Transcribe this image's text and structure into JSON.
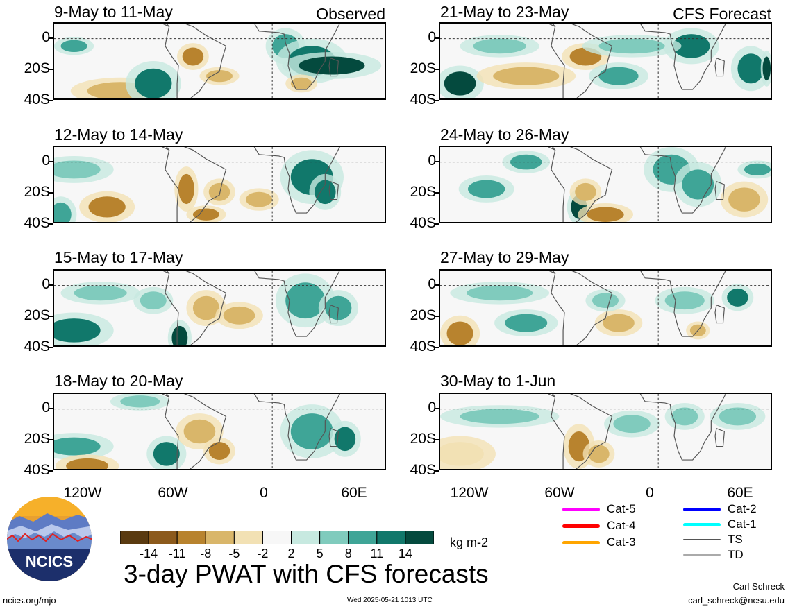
{
  "header": {
    "left_label": "Observed",
    "right_label": "CFS Forecast"
  },
  "panels": {
    "left": [
      "9-May to 11-May",
      "12-May to 14-May",
      "15-May to 17-May",
      "18-May to 20-May"
    ],
    "right": [
      "21-May to 23-May",
      "24-May to 26-May",
      "27-May to 29-May",
      "30-May to 1-Jun"
    ]
  },
  "axes": {
    "lat_ticks": [
      "0",
      "20S",
      "40S"
    ],
    "lon_ticks": [
      "120W",
      "60W",
      "0",
      "60E"
    ]
  },
  "colorbar": {
    "ticks": [
      "-14",
      "-11",
      "-8",
      "-5",
      "-2",
      "2",
      "5",
      "8",
      "11",
      "14"
    ],
    "units": "kg m-2",
    "colors": [
      "#5a3a10",
      "#8c5a1c",
      "#b8832e",
      "#d9b66a",
      "#f2e1b4",
      "#f7f7f7",
      "#c7e9e0",
      "#80cbbd",
      "#3fa597",
      "#11786b",
      "#044a3e"
    ]
  },
  "legend": {
    "col1": [
      {
        "label": "Cat-5",
        "color": "#ff00ff"
      },
      {
        "label": "Cat-4",
        "color": "#ff0000"
      },
      {
        "label": "Cat-3",
        "color": "#ffa500"
      }
    ],
    "col2": [
      {
        "label": "Cat-2",
        "color": "#0000ff"
      },
      {
        "label": "Cat-1",
        "color": "#00ffff"
      },
      {
        "label": "TS",
        "color": "#555555"
      },
      {
        "label": "TD",
        "color": "#aaaaaa"
      }
    ]
  },
  "logo": {
    "text": "NCICS"
  },
  "footer": {
    "title": "3-day PWAT with CFS forecasts",
    "url": "ncics.org/mjo",
    "timestamp": "Wed 2025-05-21 1013 UTC",
    "author": "Carl Schreck",
    "email": "carl_schreck@ncsu.edu"
  }
}
